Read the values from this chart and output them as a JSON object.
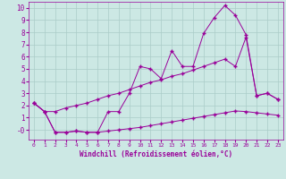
{
  "xlabel": "Windchill (Refroidissement éolien,°C)",
  "x": [
    0,
    1,
    2,
    3,
    4,
    5,
    6,
    7,
    8,
    9,
    10,
    11,
    12,
    13,
    14,
    15,
    16,
    17,
    18,
    19,
    20,
    21,
    22,
    23
  ],
  "y_main": [
    2.2,
    1.5,
    -0.2,
    -0.2,
    -0.1,
    -0.2,
    -0.2,
    1.5,
    1.5,
    3.0,
    5.2,
    5.0,
    4.2,
    6.5,
    5.2,
    5.2,
    7.9,
    9.2,
    10.2,
    9.4,
    7.8,
    2.8,
    3.0,
    2.5
  ],
  "y_upper": [
    2.2,
    1.5,
    1.5,
    1.8,
    2.0,
    2.2,
    2.5,
    2.8,
    3.0,
    3.3,
    3.6,
    3.9,
    4.1,
    4.4,
    4.6,
    4.9,
    5.2,
    5.5,
    5.8,
    5.2,
    7.6,
    2.8,
    3.0,
    2.5
  ],
  "y_lower": [
    2.2,
    1.5,
    -0.2,
    -0.2,
    -0.1,
    -0.2,
    -0.2,
    -0.1,
    0.0,
    0.1,
    0.2,
    0.35,
    0.5,
    0.65,
    0.8,
    0.95,
    1.1,
    1.25,
    1.4,
    1.55,
    1.5,
    1.4,
    1.3,
    1.2
  ],
  "bg_color": "#cce8e4",
  "line_color": "#990099",
  "grid_color": "#aaccc8",
  "ylim": [
    -0.8,
    10.5
  ],
  "xlim": [
    -0.5,
    23.5
  ],
  "yticks": [
    0,
    1,
    2,
    3,
    4,
    5,
    6,
    7,
    8,
    9,
    10
  ],
  "ytick_labels": [
    "-0",
    "1",
    "2",
    "3",
    "4",
    "5",
    "6",
    "7",
    "8",
    "9",
    "10"
  ],
  "xticks": [
    0,
    1,
    2,
    3,
    4,
    5,
    6,
    7,
    8,
    9,
    10,
    11,
    12,
    13,
    14,
    15,
    16,
    17,
    18,
    19,
    20,
    21,
    22,
    23
  ]
}
